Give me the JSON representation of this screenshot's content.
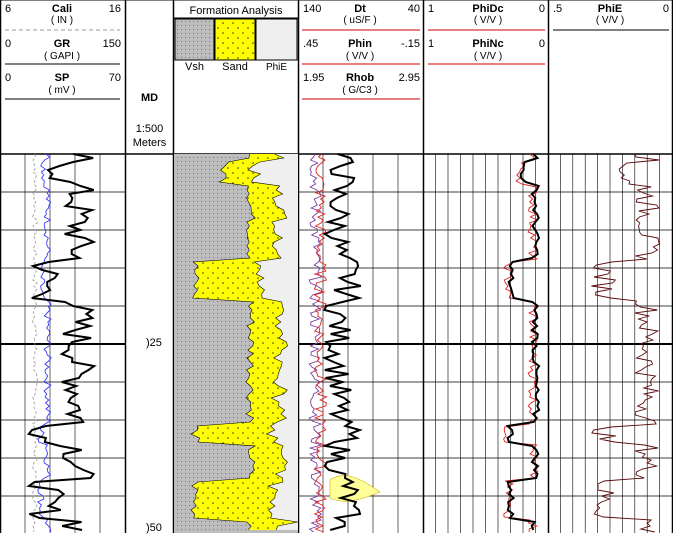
{
  "tracks": {
    "cali": {
      "name": "Cali",
      "unit": "( IN )",
      "min": "6",
      "max": "16"
    },
    "gr": {
      "name": "GR",
      "unit": "( GAPI )",
      "min": "0",
      "max": "150"
    },
    "sp": {
      "name": "SP",
      "unit": "( mV )",
      "min": "0",
      "max": "70"
    },
    "md": {
      "title": "MD",
      "scale": "1:500",
      "units": "Meters",
      "depth_1": ")25",
      "depth_2": ")50"
    },
    "formation": {
      "title": "Formation Analysis",
      "vsh": "Vsh",
      "sand": "Sand",
      "phie": "PhiE"
    },
    "dt": {
      "name": "Dt",
      "unit": "( uS/F )",
      "min": "140",
      "max": "40"
    },
    "phin": {
      "name": "Phin",
      "unit": "( V/V )",
      "min": ".45",
      "max": "-.15"
    },
    "rhob": {
      "name": "Rhob",
      "unit": "( G/C3 )",
      "min": "1.95",
      "max": "2.95"
    },
    "phidc": {
      "name": "PhiDc",
      "unit": "( V/V )",
      "min": "1",
      "max": "0"
    },
    "phinc": {
      "name": "PhiNc",
      "unit": "( V/V )",
      "min": "1",
      "max": "0"
    },
    "phie": {
      "name": "PhiE",
      "unit": "( V/V )",
      "min": ".5",
      "max": "0"
    }
  },
  "colors": {
    "cali": "#999999",
    "gr": "#000000",
    "sp": "#3a3aff",
    "dt": "#000000",
    "phin": "#7a3fa0",
    "rhob": "#e02020",
    "sand": "#ffff00",
    "shale": "#bdbdbd",
    "phie_fill": "#efefef",
    "gas": "#ffff99",
    "phidc": "#000000",
    "phinc": "#e02020",
    "phie_curve": "#5a0a0a",
    "divider": "#cc0000"
  }
}
